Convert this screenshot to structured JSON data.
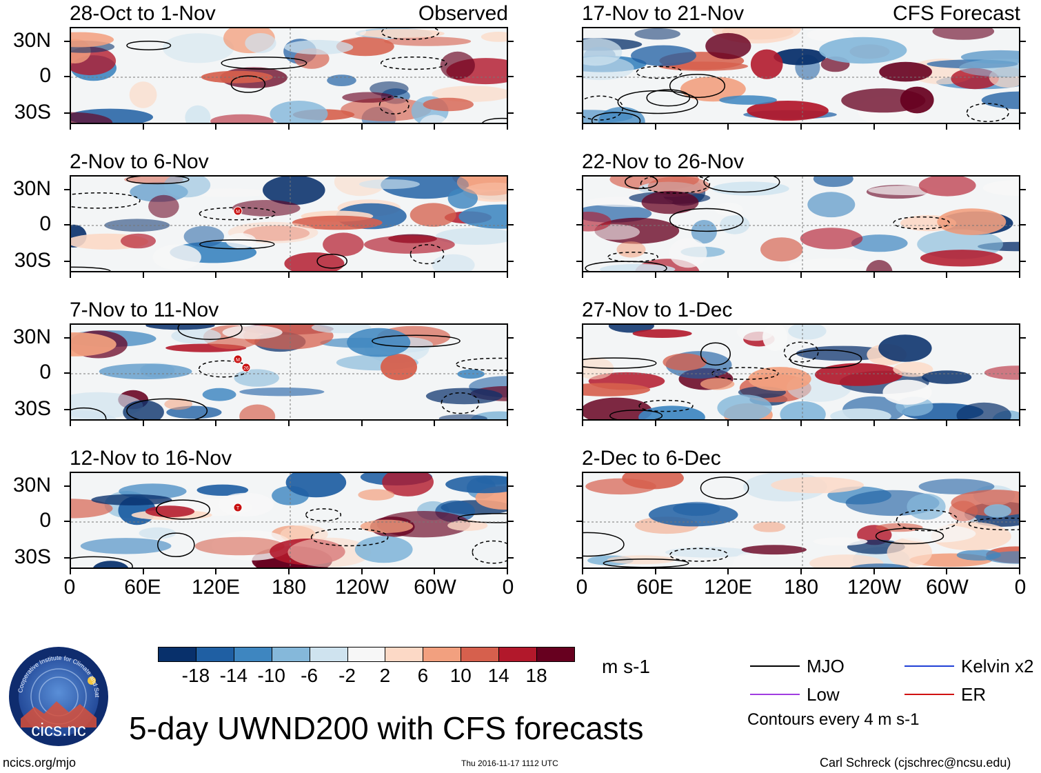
{
  "chart_data": {
    "type": "heatmap",
    "title": "5-day UWND200 with CFS forecasts",
    "variable": "UWND200",
    "units": "m s-1",
    "y_ticks": [
      "30N",
      "0",
      "30S"
    ],
    "x_ticks": [
      "0",
      "60E",
      "120E",
      "180",
      "120W",
      "60W",
      "0"
    ],
    "lat_range": [
      -40,
      40
    ],
    "lon_range": [
      0,
      360
    ],
    "colorbar": {
      "ticks": [
        "-18",
        "-14",
        "-10",
        "-6",
        "-2",
        "2",
        "6",
        "10",
        "14",
        "18"
      ],
      "colors": [
        "#08306b",
        "#1f5fa3",
        "#3e86c0",
        "#85b8da",
        "#cfe3ef",
        "#f7f7f7",
        "#fcd9c6",
        "#f2a07f",
        "#d6604d",
        "#b2182b",
        "#67001f"
      ]
    },
    "panels": [
      {
        "column": "left",
        "row": 0,
        "period": "28-Oct to 1-Nov",
        "tag": "Observed",
        "markers": []
      },
      {
        "column": "left",
        "row": 1,
        "period": "2-Nov to 6-Nov",
        "tag": "",
        "markers": [
          "M"
        ]
      },
      {
        "column": "left",
        "row": 2,
        "period": "7-Nov to 11-Nov",
        "tag": "",
        "markers": [
          "M",
          "26"
        ]
      },
      {
        "column": "left",
        "row": 3,
        "period": "12-Nov to 16-Nov",
        "tag": "",
        "markers": [
          "T"
        ]
      },
      {
        "column": "right",
        "row": 0,
        "period": "17-Nov to 21-Nov",
        "tag": "CFS Forecast",
        "markers": []
      },
      {
        "column": "right",
        "row": 1,
        "period": "22-Nov to 26-Nov",
        "tag": "",
        "markers": []
      },
      {
        "column": "right",
        "row": 2,
        "period": "27-Nov to 1-Dec",
        "tag": "",
        "markers": []
      },
      {
        "column": "right",
        "row": 3,
        "period": "2-Dec to 6-Dec",
        "tag": "",
        "markers": []
      }
    ],
    "contour_legend": [
      {
        "label": "MJO",
        "color": "#000000"
      },
      {
        "label": "Kelvin x2",
        "color": "#1f3fd6"
      },
      {
        "label": "Low",
        "color": "#a03ce0"
      },
      {
        "label": "ER",
        "color": "#d01010"
      }
    ],
    "contour_note": "Contours every 4 m s-1"
  },
  "logo": {
    "text": "cics.nc",
    "ring_text": "Cooperative Institute for Climate and Satellites"
  },
  "footer": {
    "website": "ncics.org/mjo",
    "timestamp": "Thu 2016-11-17 1112 UTC",
    "author": "Carl Schreck (cjschrec@ncsu.edu)"
  }
}
